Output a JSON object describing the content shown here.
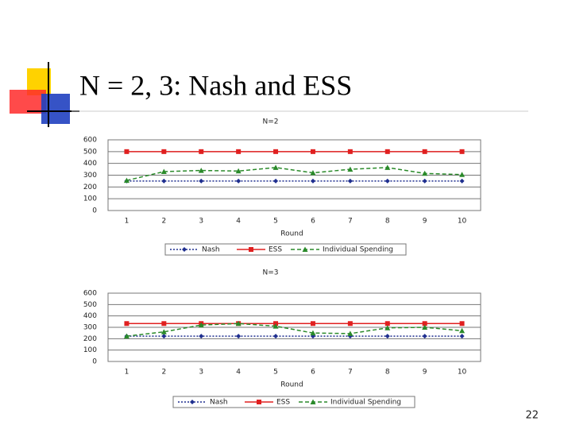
{
  "title": "N = 2, 3: Nash and ESS",
  "page_number": "22",
  "chart_data": [
    {
      "type": "line",
      "title": "N=2",
      "x_label": "Round",
      "categories": [
        "1",
        "2",
        "3",
        "4",
        "5",
        "6",
        "7",
        "8",
        "9",
        "10"
      ],
      "ylim": [
        0,
        600
      ],
      "yticks": [
        0,
        100,
        200,
        300,
        400,
        500,
        600
      ],
      "grid": true,
      "legend": "bottom",
      "series": [
        {
          "name": "Nash",
          "color": "#1f2f8f",
          "values": [
            250,
            250,
            250,
            250,
            250,
            250,
            250,
            250,
            250,
            250
          ]
        },
        {
          "name": "ESS",
          "color": "#e02020",
          "values": [
            500,
            500,
            500,
            500,
            500,
            500,
            500,
            500,
            500,
            500
          ]
        },
        {
          "name": "Individual Spending",
          "color": "#2a8a2a",
          "values": [
            255,
            330,
            340,
            335,
            365,
            320,
            350,
            365,
            315,
            305
          ]
        }
      ]
    },
    {
      "type": "line",
      "title": "N=3",
      "x_label": "Round",
      "categories": [
        "1",
        "2",
        "3",
        "4",
        "5",
        "6",
        "7",
        "8",
        "9",
        "10"
      ],
      "ylim": [
        0,
        600
      ],
      "yticks": [
        0,
        100,
        200,
        300,
        400,
        500,
        600
      ],
      "grid": true,
      "legend": "bottom",
      "series": [
        {
          "name": "Nash",
          "color": "#1f2f8f",
          "values": [
            222,
            222,
            222,
            222,
            222,
            222,
            222,
            222,
            222,
            222
          ]
        },
        {
          "name": "ESS",
          "color": "#e02020",
          "values": [
            333,
            333,
            333,
            333,
            333,
            333,
            333,
            333,
            333,
            333
          ]
        },
        {
          "name": "Individual Spending",
          "color": "#2a8a2a",
          "values": [
            222,
            260,
            320,
            333,
            310,
            250,
            245,
            295,
            300,
            270
          ]
        }
      ]
    }
  ]
}
